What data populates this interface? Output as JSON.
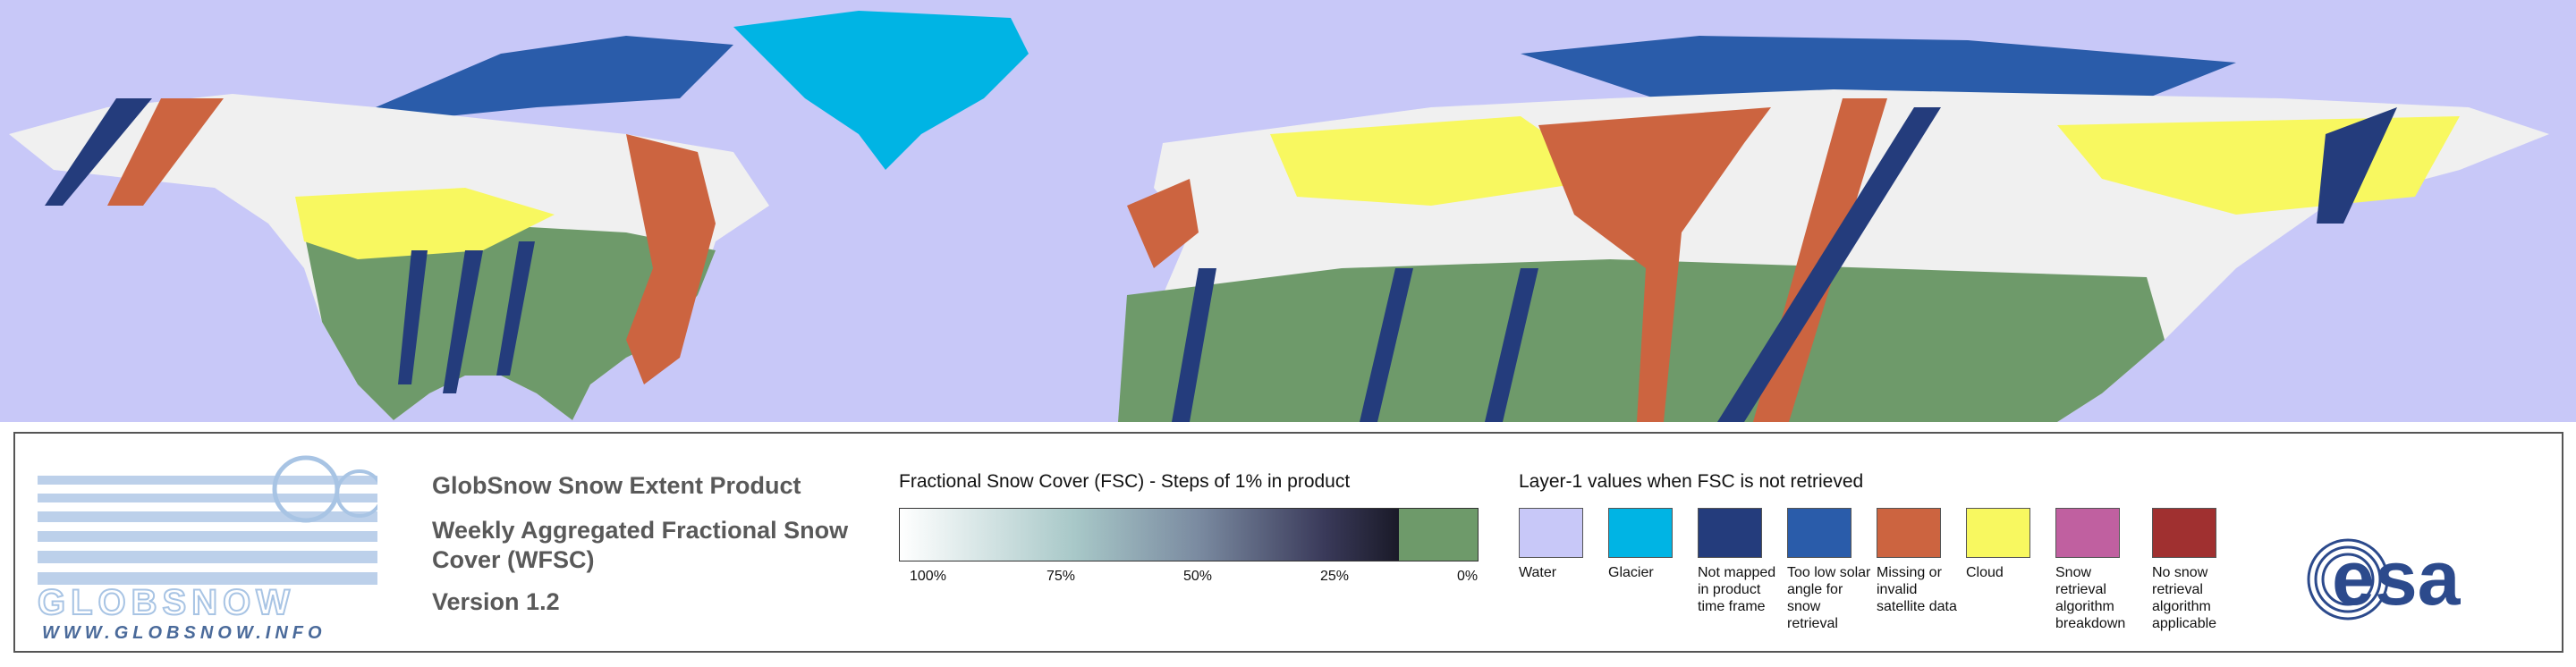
{
  "logo": {
    "name": "GLOBSNOW",
    "url": "WWW.GLOBSNOW.INFO"
  },
  "product": {
    "title": "GlobSnow Snow Extent Product",
    "subtitle": "Weekly Aggregated Fractional Snow Cover (WFSC)",
    "version": "Version 1.2"
  },
  "fsc_legend": {
    "title": "Fractional Snow Cover (FSC) - Steps of 1% in product",
    "labels": [
      "100%",
      "75%",
      "50%",
      "25%",
      "0%"
    ]
  },
  "layer1_legend": {
    "title": "Layer-1 values when FSC is not retrieved",
    "items": [
      {
        "label": "Water",
        "color": "#c8c8f8"
      },
      {
        "label": "Glacier",
        "color": "#00b4e4"
      },
      {
        "label": "Not mapped in product time frame",
        "color": "#243c7c"
      },
      {
        "label": "Too low solar angle for snow retrieval",
        "color": "#2a5caa"
      },
      {
        "label": "Missing or invalid satellite data",
        "color": "#cc6440"
      },
      {
        "label": "Cloud",
        "color": "#f8f860"
      },
      {
        "label": "Snow retrieval algorithm breakdown",
        "color": "#c060a0"
      },
      {
        "label": "No snow retrieval algorithm applicable",
        "color": "#a03030"
      }
    ]
  },
  "agency_logo": "esa"
}
